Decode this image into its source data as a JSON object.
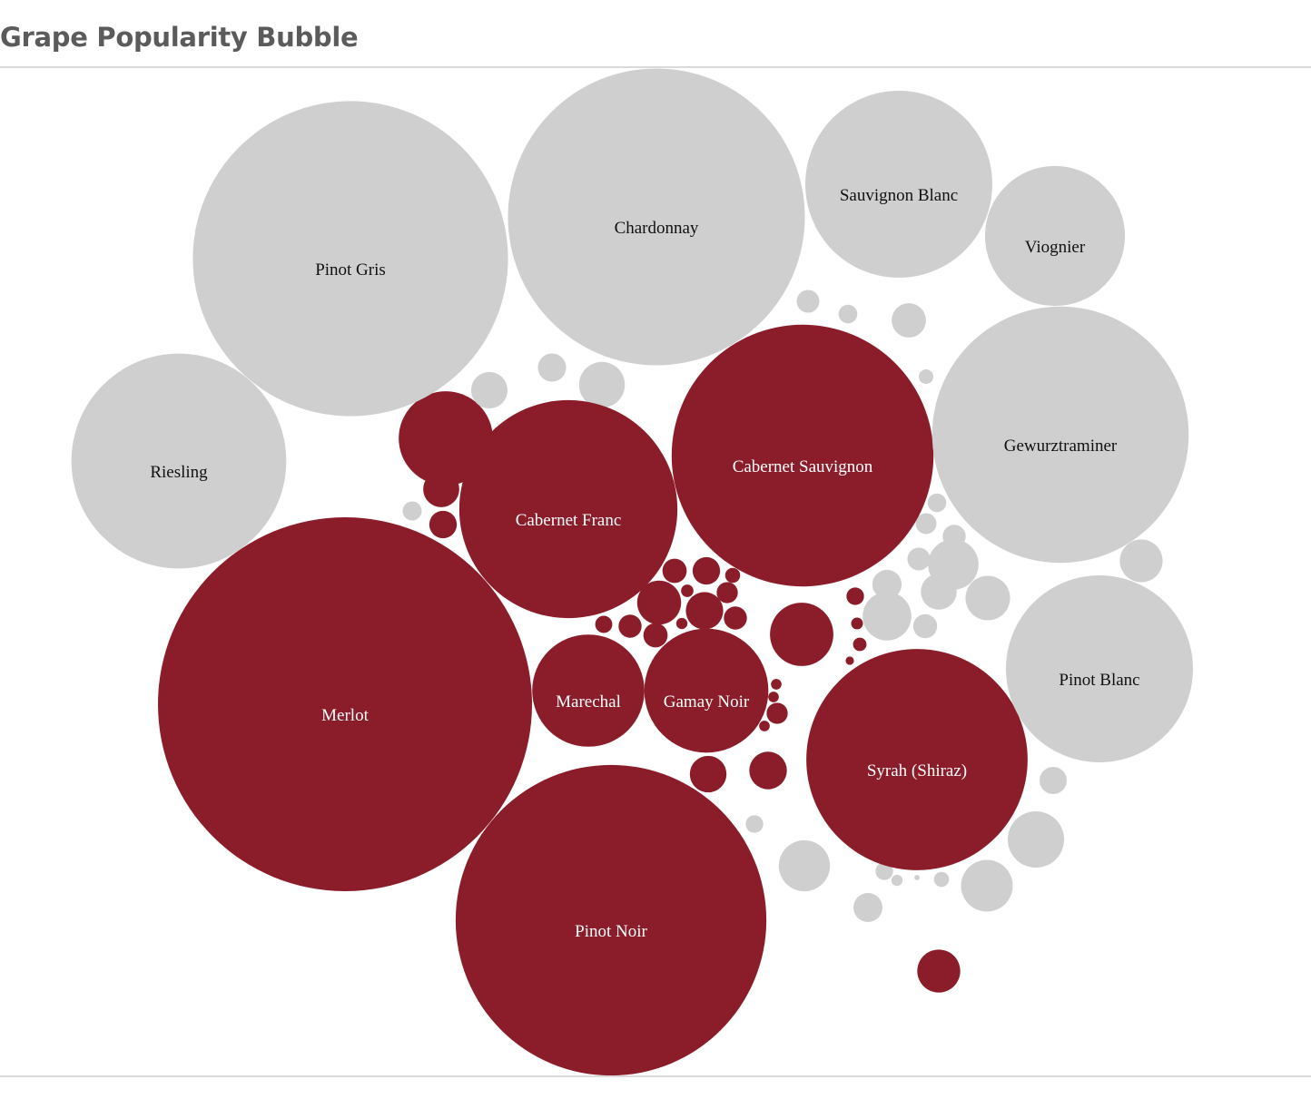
{
  "header": {
    "title": "Grape Popularity Bubble"
  },
  "colors": {
    "red": "#8b1d2a",
    "white": "#cfcfcf",
    "label_on_red": "#ffffff",
    "label_on_white": "#111111",
    "title": "#5b5b5b",
    "divider": "#dadada"
  },
  "chart_data": {
    "type": "bubble",
    "title": "Grape Popularity Bubble",
    "groups": [
      "red",
      "white"
    ],
    "labeled_bubbles": [
      {
        "name": "Merlot",
        "group": "red",
        "value": 100
      },
      {
        "name": "Pinot Gris",
        "group": "white",
        "value": 71
      },
      {
        "name": "Pinot Noir",
        "group": "red",
        "value": 69
      },
      {
        "name": "Chardonnay",
        "group": "white",
        "value": 63
      },
      {
        "name": "Cabernet Sauvignon",
        "group": "red",
        "value": 49
      },
      {
        "name": "Gewurztraminer",
        "group": "white",
        "value": 47
      },
      {
        "name": "Cabernet Franc",
        "group": "red",
        "value": 34
      },
      {
        "name": "Riesling",
        "group": "white",
        "value": 33
      },
      {
        "name": "Syrah (Shiraz)",
        "group": "red",
        "value": 35
      },
      {
        "name": "Pinot Blanc",
        "group": "white",
        "value": 25
      },
      {
        "name": "Sauvignon Blanc",
        "group": "white",
        "value": 25
      },
      {
        "name": "Gamay Noir",
        "group": "red",
        "value": 11
      },
      {
        "name": "Marechal",
        "group": "red",
        "value": 9
      },
      {
        "name": "Viognier",
        "group": "white",
        "value": 14
      }
    ],
    "unlabeled_bubbles": [
      {
        "group": "red",
        "value": 2.87
      },
      {
        "group": "red",
        "value": 1.01
      },
      {
        "group": "red",
        "value": 0.96
      },
      {
        "group": "red",
        "value": 6.33
      },
      {
        "group": "red",
        "value": 0.54
      },
      {
        "group": "red",
        "value": 0.93
      },
      {
        "group": "red",
        "value": 0.21
      },
      {
        "group": "red",
        "value": 0.38
      },
      {
        "group": "red",
        "value": 0.42
      },
      {
        "group": "red",
        "value": 1.38
      },
      {
        "group": "red",
        "value": 1.0
      },
      {
        "group": "red",
        "value": 0.54
      },
      {
        "group": "red",
        "value": 0.42
      },
      {
        "group": "red",
        "value": 0.11
      },
      {
        "group": "red",
        "value": 0.09
      },
      {
        "group": "red",
        "value": 0.32
      },
      {
        "group": "red",
        "value": 0.38
      },
      {
        "group": "red",
        "value": 0.16
      },
      {
        "group": "red",
        "value": 0.22
      },
      {
        "group": "red",
        "value": 0.13
      },
      {
        "group": "red",
        "value": 0.1
      },
      {
        "group": "red",
        "value": 0.05
      },
      {
        "group": "red",
        "value": 0.08
      },
      {
        "group": "red",
        "value": 0.08
      },
      {
        "group": "red",
        "value": 0.08
      },
      {
        "group": "red",
        "value": 0.32
      },
      {
        "group": "red",
        "value": 1.32
      },
      {
        "group": "white",
        "value": 0.95
      },
      {
        "group": "white",
        "value": 0.57
      },
      {
        "group": "white",
        "value": 1.5
      },
      {
        "group": "white",
        "value": 0.26
      },
      {
        "group": "white",
        "value": 1.87
      },
      {
        "group": "white",
        "value": 1.91
      },
      {
        "group": "white",
        "value": 0.6
      },
      {
        "group": "white",
        "value": 0.22
      },
      {
        "group": "white",
        "value": 0.53
      },
      {
        "group": "white",
        "value": 0.25
      },
      {
        "group": "white",
        "value": 0.37
      },
      {
        "group": "white",
        "value": 0.84
      },
      {
        "group": "white",
        "value": 0.15
      },
      {
        "group": "white",
        "value": 0.25
      },
      {
        "group": "white",
        "value": 0.31
      },
      {
        "group": "white",
        "value": 0.38
      },
      {
        "group": "white",
        "value": 0.37
      },
      {
        "group": "white",
        "value": 1.82
      },
      {
        "group": "white",
        "value": 0.61
      },
      {
        "group": "white",
        "value": 0.92
      },
      {
        "group": "white",
        "value": 1.42
      },
      {
        "group": "white",
        "value": 1.69
      },
      {
        "group": "white",
        "value": 0.41
      },
      {
        "group": "white",
        "value": 2.27
      },
      {
        "group": "white",
        "value": 1.31
      },
      {
        "group": "white",
        "value": 0.16
      },
      {
        "group": "white",
        "value": 0.09
      },
      {
        "group": "white",
        "value": 0.02
      },
      {
        "group": "white",
        "value": 0.22
      }
    ]
  }
}
